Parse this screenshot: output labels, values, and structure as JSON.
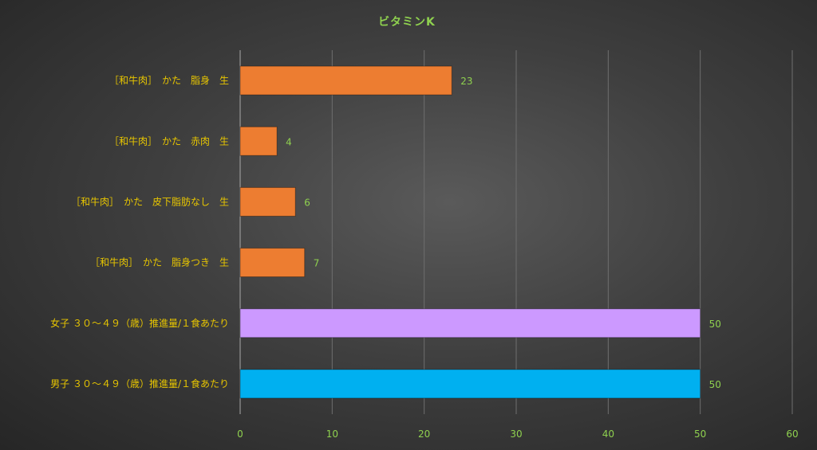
{
  "chart_data": {
    "type": "bar",
    "orientation": "horizontal",
    "title": "ビタミンK",
    "categories": [
      "［和牛肉］　かた　脂身　生",
      "［和牛肉］　かた　赤肉　生",
      "［和牛肉］　かた　皮下脂肪なし　生",
      "［和牛肉］　かた　脂身つき　生",
      "女子 ３０～４９（歳）推進量/１食あたり",
      "男子 ３０～４９（歳）推進量/１食あたり"
    ],
    "values": [
      23,
      4,
      6,
      7,
      50,
      50
    ],
    "bar_colors": [
      "#ed7d31",
      "#ed7d31",
      "#ed7d31",
      "#ed7d31",
      "#cc99ff",
      "#00b0f0"
    ],
    "xlim": [
      0,
      60
    ],
    "xticks": [
      0,
      10,
      20,
      30,
      40,
      50,
      60
    ],
    "grid": true,
    "legend": "none",
    "colors": {
      "title": "#8fd14f",
      "category_label": "#e8c600",
      "tick_label": "#8fd14f",
      "data_label": "#8fd14f"
    }
  }
}
